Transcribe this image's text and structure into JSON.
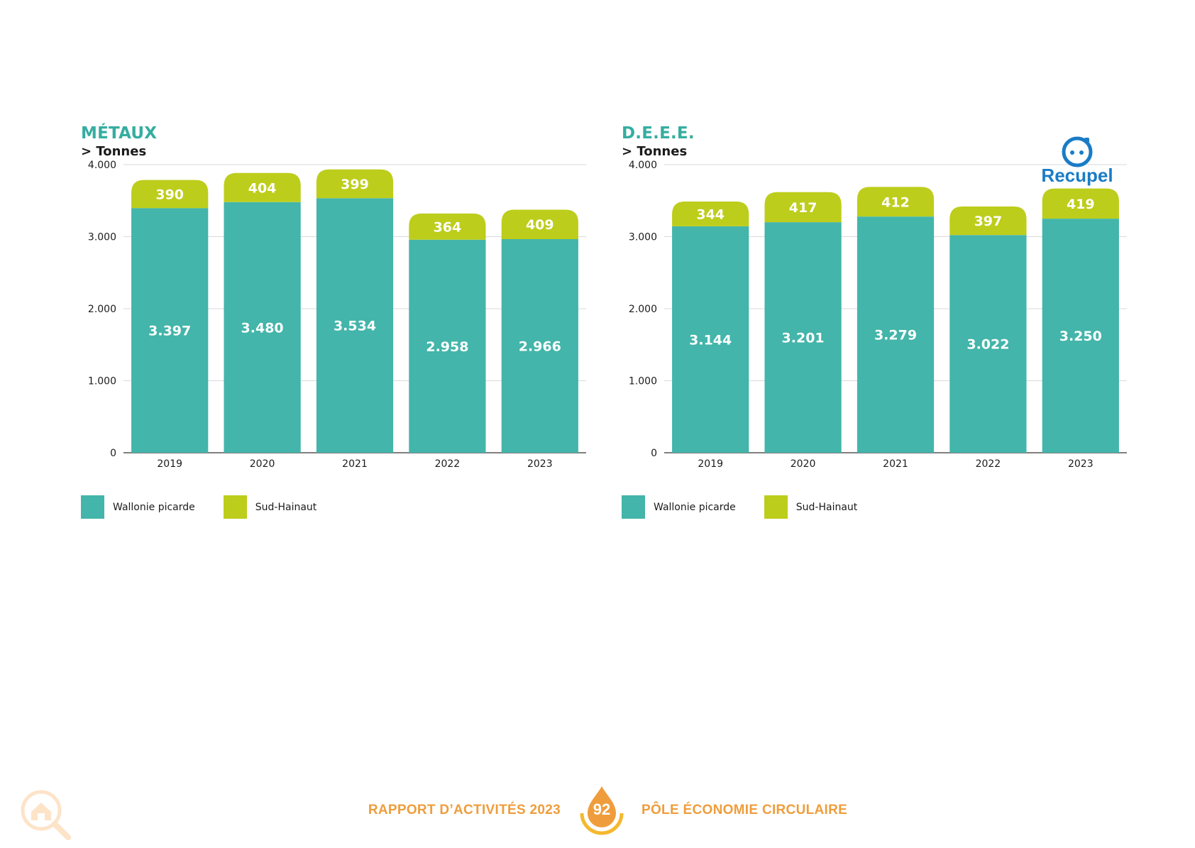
{
  "colors": {
    "wallonie": "#43b5aa",
    "sud_hainaut": "#bdcd1b",
    "title": "#35ada0",
    "footer": "#ef9d3c"
  },
  "legend": [
    {
      "label": "Wallonie picarde",
      "color": "#43b5aa"
    },
    {
      "label": "Sud-Hainaut",
      "color": "#bdcd1b"
    }
  ],
  "chart_data": [
    {
      "type": "bar",
      "stacked": true,
      "title": "MÉTAUX",
      "subtitle": "> Tonnes",
      "categories": [
        "2019",
        "2020",
        "2021",
        "2022",
        "2023"
      ],
      "series": [
        {
          "name": "Wallonie picarde",
          "values": [
            3397,
            3480,
            3534,
            2958,
            2966
          ],
          "labels": [
            "3.397",
            "3.480",
            "3.534",
            "2.958",
            "2.966"
          ]
        },
        {
          "name": "Sud-Hainaut",
          "values": [
            390,
            404,
            399,
            364,
            409
          ],
          "labels": [
            "390",
            "404",
            "399",
            "364",
            "409"
          ]
        }
      ],
      "ylim": [
        0,
        4000
      ],
      "yticks": [
        0,
        1000,
        2000,
        3000,
        4000
      ],
      "ytick_labels": [
        "0",
        "1.000",
        "2.000",
        "3.000",
        "4.000"
      ],
      "grid": true,
      "legend_position": "bottom-left"
    },
    {
      "type": "bar",
      "stacked": true,
      "title": "D.E.E.E.",
      "subtitle": "> Tonnes",
      "categories": [
        "2019",
        "2020",
        "2021",
        "2022",
        "2023"
      ],
      "series": [
        {
          "name": "Wallonie picarde",
          "values": [
            3144,
            3201,
            3279,
            3022,
            3250
          ],
          "labels": [
            "3.144",
            "3.201",
            "3.279",
            "3.022",
            "3.250"
          ]
        },
        {
          "name": "Sud-Hainaut",
          "values": [
            344,
            417,
            412,
            397,
            419
          ],
          "labels": [
            "344",
            "417",
            "412",
            "397",
            "419"
          ]
        }
      ],
      "ylim": [
        0,
        4000
      ],
      "yticks": [
        0,
        1000,
        2000,
        3000,
        4000
      ],
      "ytick_labels": [
        "0",
        "1.000",
        "2.000",
        "3.000",
        "4.000"
      ],
      "grid": true,
      "legend_position": "bottom-left"
    }
  ],
  "logo": {
    "text": "Recupel",
    "icon": "recupel-plug-icon"
  },
  "footer": {
    "left_text": "RAPPORT D’ACTIVITÉS 2023",
    "page_number": "92",
    "right_text": "PÔLE ÉCONOMIE CIRCULAIRE",
    "corner_icon": "house-magnifier-icon"
  }
}
